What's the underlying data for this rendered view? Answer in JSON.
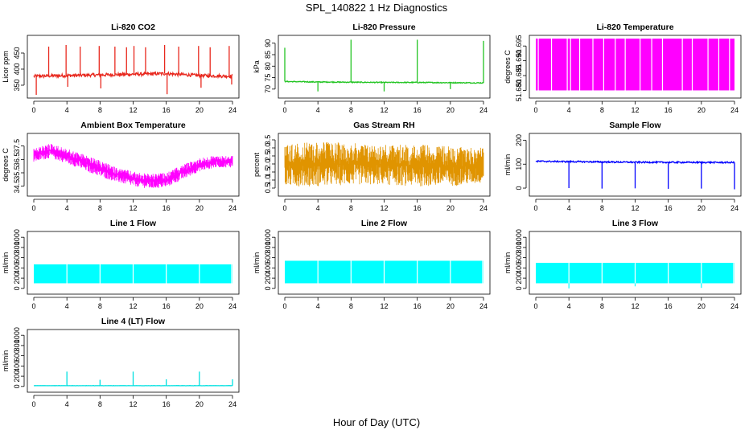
{
  "figure": {
    "title": "SPL_140822  1 Hz Diagnostics",
    "xlabel": "Hour of Day (UTC)"
  },
  "chart_data": [
    {
      "type": "line",
      "title": "Li-820 CO2",
      "ylabel": "Licor ppm",
      "color": "#e8281e",
      "xlim": [
        0,
        24
      ],
      "ylim": [
        320,
        495
      ],
      "xticks": [
        0,
        4,
        8,
        12,
        16,
        20,
        24
      ],
      "yticks": [
        350,
        400,
        450
      ],
      "baseline": [
        [
          0,
          378
        ],
        [
          4,
          380
        ],
        [
          8,
          382
        ],
        [
          12,
          384
        ],
        [
          16,
          386
        ],
        [
          20,
          380
        ],
        [
          24,
          378
        ]
      ],
      "noise": 5,
      "spikes": [
        {
          "x": 0.3,
          "y": 320
        },
        {
          "x": 1.8,
          "y": 470
        },
        {
          "x": 3.9,
          "y": 475
        },
        {
          "x": 4.1,
          "y": 345
        },
        {
          "x": 5.6,
          "y": 470
        },
        {
          "x": 7.9,
          "y": 472
        },
        {
          "x": 8.1,
          "y": 340
        },
        {
          "x": 9.8,
          "y": 470
        },
        {
          "x": 11.2,
          "y": 468
        },
        {
          "x": 12.1,
          "y": 472
        },
        {
          "x": 13.5,
          "y": 468
        },
        {
          "x": 15.8,
          "y": 475
        },
        {
          "x": 16.1,
          "y": 322
        },
        {
          "x": 17.5,
          "y": 470
        },
        {
          "x": 19.9,
          "y": 472
        },
        {
          "x": 20.2,
          "y": 342
        },
        {
          "x": 21.3,
          "y": 468
        },
        {
          "x": 23.6,
          "y": 472
        },
        {
          "x": 23.9,
          "y": 352
        }
      ]
    },
    {
      "type": "line",
      "title": "Li-820 Pressure",
      "ylabel": "kPa",
      "color": "#22c422",
      "xlim": [
        0,
        24
      ],
      "ylim": [
        67.5,
        92
      ],
      "xticks": [
        0,
        4,
        8,
        12,
        16,
        20,
        24
      ],
      "yticks": [
        70,
        75,
        80,
        85,
        90
      ],
      "baseline": [
        [
          0,
          73.3
        ],
        [
          4,
          73.1
        ],
        [
          8,
          73.0
        ],
        [
          12,
          72.9
        ],
        [
          16,
          72.9
        ],
        [
          20,
          72.8
        ],
        [
          24,
          72.7
        ]
      ],
      "noise": 0.2,
      "spikes": [
        {
          "x": 0.0,
          "y": 88
        },
        {
          "x": 4.0,
          "y": 69
        },
        {
          "x": 8.0,
          "y": 91.5
        },
        {
          "x": 12.0,
          "y": 69
        },
        {
          "x": 16.0,
          "y": 91.5
        },
        {
          "x": 20.0,
          "y": 70
        },
        {
          "x": 24.0,
          "y": 91
        }
      ]
    },
    {
      "type": "line",
      "title": "Li-820 Temperature",
      "ylabel": "degrees C",
      "color": "#ff00ff",
      "xlim": [
        0,
        24
      ],
      "ylim": [
        51.6785,
        51.6975
      ],
      "xticks": [
        0,
        4,
        8,
        12,
        16,
        20,
        24
      ],
      "yticks": [
        51.68,
        51.685,
        51.69,
        51.695
      ],
      "yticklabels": [
        "51.680",
        "51.685",
        "51.690",
        "51.695"
      ],
      "fill": [
        51.68,
        51.6975
      ],
      "gaps": [
        0.3,
        1.9,
        3.8,
        4.2,
        5.3,
        6.9,
        8.2,
        9.6,
        10.8,
        12.6,
        14.0,
        15.3,
        17.7,
        18.9,
        20.8,
        22.1,
        23.4
      ]
    },
    {
      "type": "line",
      "title": "Ambient Box Temperature",
      "ylabel": "degrees C",
      "color": "#ff00ff",
      "xlim": [
        0,
        24
      ],
      "ylim": [
        34,
        38.2
      ],
      "xticks": [
        0,
        4,
        8,
        12,
        16,
        20,
        24
      ],
      "yticks": [
        34.5,
        35.5,
        36.5,
        37.5
      ],
      "band": [
        [
          0,
          36.3,
          37.3
        ],
        [
          2,
          36.6,
          37.7
        ],
        [
          4,
          36.2,
          37.3
        ],
        [
          6,
          35.7,
          36.9
        ],
        [
          8,
          35.2,
          36.4
        ],
        [
          10,
          34.8,
          35.9
        ],
        [
          12,
          34.5,
          35.6
        ],
        [
          14,
          34.3,
          35.4
        ],
        [
          16,
          34.4,
          35.5
        ],
        [
          18,
          35.0,
          36.1
        ],
        [
          20,
          35.6,
          36.6
        ],
        [
          22,
          35.9,
          36.8
        ],
        [
          24,
          35.9,
          36.8
        ]
      ]
    },
    {
      "type": "line",
      "title": "Gas Stream RH",
      "ylabel": "percent",
      "color": "#e09400",
      "xlim": [
        0,
        24
      ],
      "ylim": [
        0.2,
        3.7
      ],
      "xticks": [
        0,
        4,
        8,
        12,
        16,
        20,
        24
      ],
      "yticks": [
        0.5,
        1.0,
        1.5,
        2.0,
        2.5,
        3.0,
        3.5
      ],
      "yticklabels": [
        "0.5",
        "1.0",
        "1.5",
        "2.0",
        "2.5",
        "3.0",
        "3.5"
      ],
      "band": [
        [
          0,
          0.6,
          3.2
        ],
        [
          4,
          0.6,
          3.4
        ],
        [
          8,
          0.7,
          3.3
        ],
        [
          12,
          0.7,
          3.2
        ],
        [
          16,
          0.6,
          3.2
        ],
        [
          20,
          0.6,
          3.1
        ],
        [
          24,
          0.8,
          3.0
        ]
      ]
    },
    {
      "type": "line",
      "title": "Sample Flow",
      "ylabel": "ml/min",
      "color": "#0000ff",
      "xlim": [
        0,
        24
      ],
      "ylim": [
        -20,
        215
      ],
      "xticks": [
        0,
        4,
        8,
        12,
        16,
        20,
        24
      ],
      "yticks": [
        0,
        100,
        200
      ],
      "baseline": [
        [
          0,
          112
        ],
        [
          12,
          108
        ],
        [
          24,
          107
        ]
      ],
      "noise": 3,
      "spikes": [
        {
          "x": 4.0,
          "y": 0
        },
        {
          "x": 8.0,
          "y": -2
        },
        {
          "x": 12.0,
          "y": -1
        },
        {
          "x": 16.0,
          "y": -3
        },
        {
          "x": 20.0,
          "y": -2
        },
        {
          "x": 24.0,
          "y": -5
        }
      ]
    },
    {
      "type": "line",
      "title": "Line 1 Flow",
      "ylabel": "ml/min",
      "color": "#00ffff",
      "xlim": [
        0,
        24
      ],
      "ylim": [
        -50,
        1050
      ],
      "xticks": [
        0,
        4,
        8,
        12,
        16,
        20,
        24
      ],
      "yticks": [
        0,
        200,
        400,
        600,
        800,
        1000
      ],
      "fill": [
        100,
        470
      ],
      "gaps": [
        4.0,
        8.0,
        12.0,
        16.0,
        20.0,
        23.9
      ]
    },
    {
      "type": "line",
      "title": "Line 2 Flow",
      "ylabel": "ml/min",
      "color": "#00ffff",
      "xlim": [
        0,
        24
      ],
      "ylim": [
        -50,
        1050
      ],
      "xticks": [
        0,
        4,
        8,
        12,
        16,
        20,
        24
      ],
      "yticks": [
        0,
        200,
        400,
        600,
        800,
        1000
      ],
      "fill": [
        100,
        540
      ],
      "gaps": [
        4.0,
        8.0,
        12.0,
        16.0,
        20.0,
        23.9
      ]
    },
    {
      "type": "line",
      "title": "Line 3 Flow",
      "ylabel": "ml/min",
      "color": "#00ffff",
      "xlim": [
        0,
        24
      ],
      "ylim": [
        -50,
        1050
      ],
      "xticks": [
        0,
        4,
        8,
        12,
        16,
        20,
        24
      ],
      "yticks": [
        0,
        200,
        400,
        600,
        800,
        1000
      ],
      "fill": [
        100,
        500
      ],
      "gaps": [
        4.0,
        8.0,
        12.0,
        16.0,
        20.0,
        23.9
      ],
      "dips": [
        {
          "x": 4.0,
          "y": 0
        },
        {
          "x": 12.0,
          "y": 40
        },
        {
          "x": 20.0,
          "y": 10
        }
      ]
    },
    {
      "type": "line",
      "title": "Line 4 (LT) Flow",
      "ylabel": "ml/min",
      "color": "#00e0e0",
      "xlim": [
        0,
        24
      ],
      "ylim": [
        -50,
        1050
      ],
      "xticks": [
        0,
        4,
        8,
        12,
        16,
        20,
        24
      ],
      "yticks": [
        0,
        200,
        400,
        600,
        800,
        1000
      ],
      "baseline": [
        [
          0,
          15
        ],
        [
          24,
          15
        ]
      ],
      "noise": 2,
      "spikes": [
        {
          "x": 4.0,
          "y": 290
        },
        {
          "x": 8.0,
          "y": 130
        },
        {
          "x": 12.0,
          "y": 290
        },
        {
          "x": 16.0,
          "y": 140
        },
        {
          "x": 20.0,
          "y": 290
        },
        {
          "x": 24.0,
          "y": 140
        }
      ]
    }
  ]
}
